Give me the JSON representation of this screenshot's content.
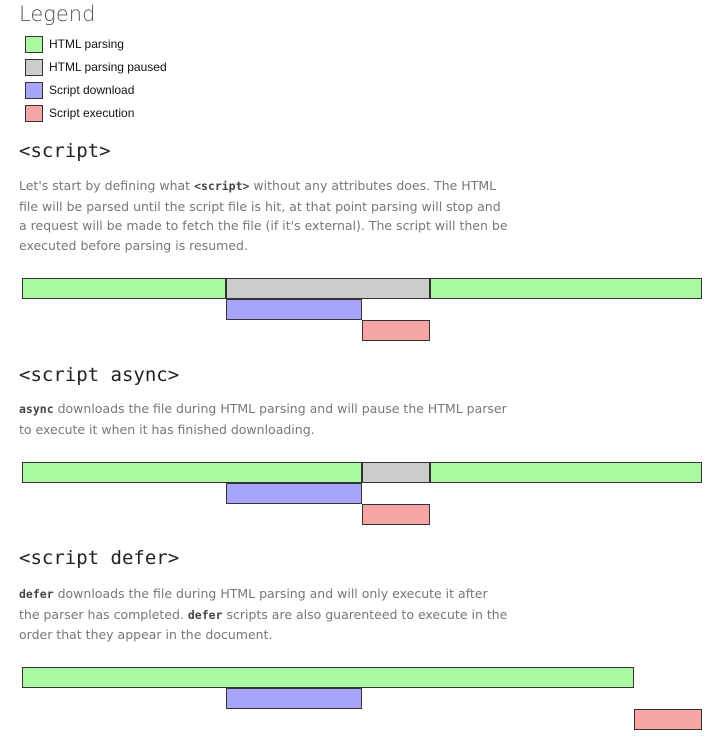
{
  "colors": {
    "parsing": "#aaf8a1",
    "paused": "#cccccc",
    "download": "#a6a5f9",
    "execution": "#f5a5a3"
  },
  "legend": {
    "title": "Legend",
    "items": [
      {
        "key": "parsing",
        "label": "HTML parsing"
      },
      {
        "key": "paused",
        "label": "HTML parsing paused"
      },
      {
        "key": "download",
        "label": "Script download"
      },
      {
        "key": "execution",
        "label": "Script execution"
      }
    ]
  },
  "sections": [
    {
      "heading": "<script>",
      "para": {
        "p1": "Let's start by defining what ",
        "c1": "<script>",
        "p2": " without any attributes does. The HTML file will be parsed until the script file is hit, at that point parsing will stop and a request will be made to fetch the file (if it's external). The script will then be executed before parsing is resumed."
      },
      "timeline": [
        {
          "kind": "parsing",
          "row": 0,
          "start": 0,
          "end": 30
        },
        {
          "kind": "paused",
          "row": 0,
          "start": 30,
          "end": 60
        },
        {
          "kind": "parsing",
          "row": 0,
          "start": 60,
          "end": 100
        },
        {
          "kind": "download",
          "row": 1,
          "start": 30,
          "end": 50
        },
        {
          "kind": "execution",
          "row": 2,
          "start": 50,
          "end": 60
        }
      ]
    },
    {
      "heading": "<script async>",
      "para": {
        "c1": "async",
        "p1": " downloads the file during HTML parsing and will pause the HTML parser to execute it when it has finished downloading."
      },
      "timeline": [
        {
          "kind": "parsing",
          "row": 0,
          "start": 0,
          "end": 50
        },
        {
          "kind": "paused",
          "row": 0,
          "start": 50,
          "end": 60
        },
        {
          "kind": "parsing",
          "row": 0,
          "start": 60,
          "end": 100
        },
        {
          "kind": "download",
          "row": 1,
          "start": 30,
          "end": 50
        },
        {
          "kind": "execution",
          "row": 2,
          "start": 50,
          "end": 60
        }
      ]
    },
    {
      "heading": "<script defer>",
      "para": {
        "c1": "defer",
        "p1": " downloads the file during HTML parsing and will only execute it after the parser has completed. ",
        "c2": "defer",
        "p2": " scripts are also guarenteed to execute in the order that they appear in the document."
      },
      "timeline": [
        {
          "kind": "parsing",
          "row": 0,
          "start": 0,
          "end": 90
        },
        {
          "kind": "download",
          "row": 1,
          "start": 30,
          "end": 50
        },
        {
          "kind": "execution",
          "row": 2,
          "start": 90,
          "end": 100
        }
      ]
    }
  ]
}
